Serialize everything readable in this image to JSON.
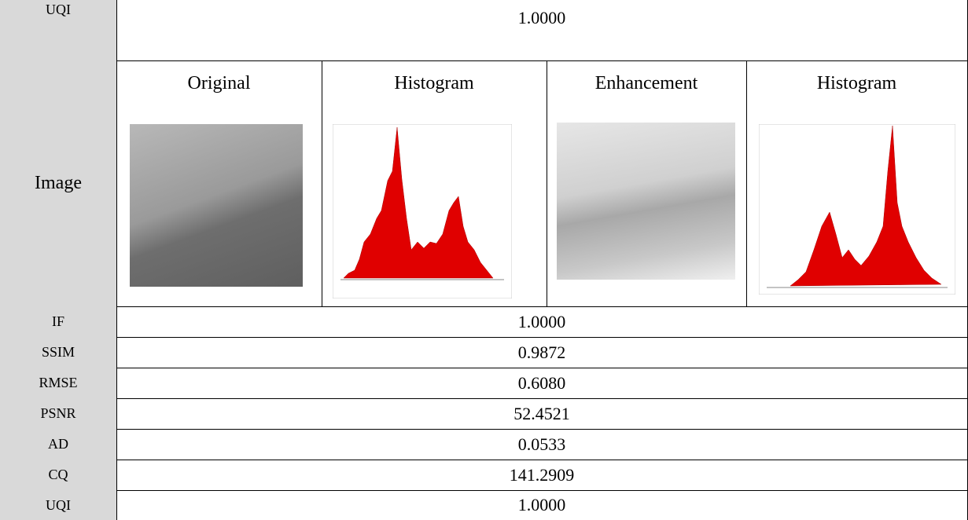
{
  "table": {
    "rows": [
      {
        "label": "UQI",
        "value": "1.0000"
      },
      {
        "label": "Image",
        "columns": [
          "Original",
          "Histogram",
          "Enhancement",
          "Histogram"
        ]
      },
      {
        "label": "IF",
        "value": "1.0000"
      },
      {
        "label": "SSIM",
        "value": "0.9872"
      },
      {
        "label": "RMSE",
        "value": "0.6080"
      },
      {
        "label": "PSNR",
        "value": "52.4521"
      },
      {
        "label": "AD",
        "value": "0.0533"
      },
      {
        "label": "CQ",
        "value": "141.2909"
      },
      {
        "label": "UQI",
        "value": "1.0000"
      }
    ]
  }
}
